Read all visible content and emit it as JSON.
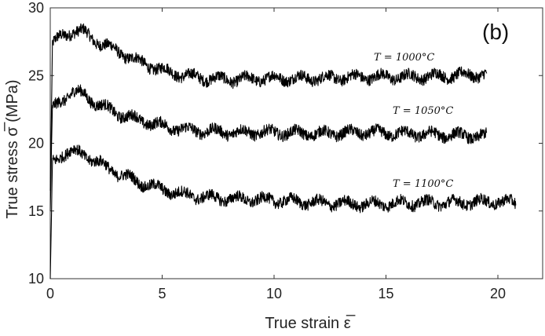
{
  "chart_data": {
    "type": "line",
    "panel_label": "(b)",
    "xlabel": "True strain ε̅",
    "ylabel": "True stress σ̅ (MPa)",
    "xlim": [
      0,
      22
    ],
    "ylim": [
      10,
      30
    ],
    "xticks": [
      0,
      5,
      10,
      15,
      20
    ],
    "yticks": [
      10,
      15,
      20,
      25,
      30
    ],
    "grid": false,
    "line_color": "#000000",
    "series": [
      {
        "name": "T = 1000°C",
        "x": [
          0,
          0.1,
          0.5,
          1.0,
          1.5,
          2.0,
          3.0,
          4.0,
          5.0,
          6.0,
          7.0,
          8.0,
          10.0,
          12.0,
          14.0,
          16.0,
          18.0,
          19.5
        ],
        "y": [
          16.5,
          27.3,
          27.9,
          28.3,
          28.2,
          27.6,
          26.8,
          26.0,
          25.4,
          25.0,
          24.8,
          24.7,
          24.8,
          24.8,
          24.9,
          24.9,
          25.0,
          25.1
        ]
      },
      {
        "name": "T = 1050°C",
        "x": [
          0,
          0.1,
          0.5,
          1.0,
          1.5,
          2.0,
          3.0,
          4.0,
          5.0,
          6.0,
          7.0,
          8.0,
          10.0,
          12.0,
          14.0,
          16.0,
          18.0,
          19.5
        ],
        "y": [
          15.0,
          22.5,
          23.2,
          23.8,
          23.6,
          23.0,
          22.2,
          21.7,
          21.3,
          21.0,
          20.9,
          20.8,
          20.8,
          20.7,
          20.8,
          20.7,
          20.6,
          20.5
        ]
      },
      {
        "name": "T = 1100°C",
        "x": [
          0,
          0.1,
          0.5,
          1.0,
          1.5,
          2.0,
          3.0,
          4.0,
          5.0,
          6.0,
          7.0,
          8.0,
          10.0,
          12.0,
          14.0,
          16.0,
          18.0,
          20.0,
          20.8
        ],
        "y": [
          10.0,
          18.6,
          19.2,
          19.4,
          19.2,
          18.7,
          17.8,
          17.1,
          16.6,
          16.2,
          16.0,
          15.9,
          15.8,
          15.6,
          15.5,
          15.6,
          15.6,
          15.7,
          15.6
        ]
      }
    ]
  }
}
